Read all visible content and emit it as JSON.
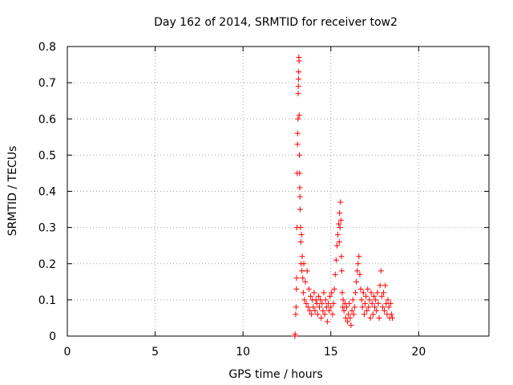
{
  "chart_data": {
    "type": "scatter",
    "title": "Day 162 of 2014, SRMTID for receiver tow2",
    "xlabel": "GPS time / hours",
    "ylabel": "SRMTID / TECUs",
    "xlim": [
      0,
      24
    ],
    "ylim": [
      0,
      0.8
    ],
    "xticks": [
      0,
      5,
      10,
      15,
      20
    ],
    "xtick_labels": [
      "0",
      "5",
      "10",
      "15",
      "20"
    ],
    "yticks": [
      0,
      0.1,
      0.2,
      0.3,
      0.4,
      0.5,
      0.6,
      0.7,
      0.8
    ],
    "ytick_labels": [
      "0",
      "0.1",
      "0.2",
      "0.3",
      "0.4",
      "0.5",
      "0.6",
      "0.7",
      "0.8"
    ],
    "grid": true,
    "marker": "plus",
    "marker_color": "#ff0000",
    "series": [
      {
        "name": "tow2",
        "points": [
          [
            12.95,
            0.0
          ],
          [
            12.97,
            0.005
          ],
          [
            13.0,
            0.06
          ],
          [
            13.02,
            0.08
          ],
          [
            13.04,
            0.13
          ],
          [
            13.05,
            0.16
          ],
          [
            13.07,
            0.3
          ],
          [
            13.08,
            0.45
          ],
          [
            13.1,
            0.53
          ],
          [
            13.11,
            0.56
          ],
          [
            13.13,
            0.6
          ],
          [
            13.14,
            0.67
          ],
          [
            13.15,
            0.69
          ],
          [
            13.16,
            0.71
          ],
          [
            13.17,
            0.73
          ],
          [
            13.18,
            0.77
          ],
          [
            13.19,
            0.76
          ],
          [
            13.2,
            0.61
          ],
          [
            13.21,
            0.5
          ],
          [
            13.22,
            0.45
          ],
          [
            13.23,
            0.41
          ],
          [
            13.24,
            0.385
          ],
          [
            13.25,
            0.35
          ],
          [
            13.27,
            0.3
          ],
          [
            13.29,
            0.26
          ],
          [
            13.31,
            0.2
          ],
          [
            13.33,
            0.28
          ],
          [
            13.35,
            0.18
          ],
          [
            13.37,
            0.22
          ],
          [
            13.4,
            0.16
          ],
          [
            13.43,
            0.12
          ],
          [
            13.46,
            0.2
          ],
          [
            13.5,
            0.1
          ],
          [
            13.55,
            0.15
          ],
          [
            13.6,
            0.09
          ],
          [
            13.65,
            0.18
          ],
          [
            13.7,
            0.08
          ],
          [
            13.75,
            0.13
          ],
          [
            13.8,
            0.07
          ],
          [
            13.85,
            0.11
          ],
          [
            13.9,
            0.06
          ],
          [
            13.95,
            0.1
          ],
          [
            14.0,
            0.08
          ],
          [
            14.05,
            0.12
          ],
          [
            14.1,
            0.07
          ],
          [
            14.15,
            0.1
          ],
          [
            14.2,
            0.09
          ],
          [
            14.25,
            0.06
          ],
          [
            14.3,
            0.11
          ],
          [
            14.35,
            0.08
          ],
          [
            14.4,
            0.1
          ],
          [
            14.45,
            0.05
          ],
          [
            14.5,
            0.09
          ],
          [
            14.55,
            0.07
          ],
          [
            14.6,
            0.12
          ],
          [
            14.65,
            0.06
          ],
          [
            14.7,
            0.1
          ],
          [
            14.75,
            0.08
          ],
          [
            14.8,
            0.04
          ],
          [
            14.85,
            0.09
          ],
          [
            14.9,
            0.07
          ],
          [
            14.95,
            0.11
          ],
          [
            15.0,
            0.08
          ],
          [
            15.05,
            0.12
          ],
          [
            15.1,
            0.06
          ],
          [
            15.15,
            0.09
          ],
          [
            15.2,
            0.13
          ],
          [
            15.25,
            0.17
          ],
          [
            15.3,
            0.21
          ],
          [
            15.35,
            0.25
          ],
          [
            15.4,
            0.28
          ],
          [
            15.45,
            0.31
          ],
          [
            15.48,
            0.26
          ],
          [
            15.5,
            0.34
          ],
          [
            15.52,
            0.3
          ],
          [
            15.55,
            0.37
          ],
          [
            15.57,
            0.32
          ],
          [
            15.6,
            0.22
          ],
          [
            15.62,
            0.18
          ],
          [
            15.65,
            0.12
          ],
          [
            15.68,
            0.08
          ],
          [
            15.7,
            0.1
          ],
          [
            15.75,
            0.07
          ],
          [
            15.8,
            0.09
          ],
          [
            15.85,
            0.05
          ],
          [
            15.9,
            0.08
          ],
          [
            15.95,
            0.04
          ],
          [
            16.0,
            0.06
          ],
          [
            16.05,
            0.09
          ],
          [
            16.1,
            0.05
          ],
          [
            16.15,
            0.03
          ],
          [
            16.2,
            0.07
          ],
          [
            16.25,
            0.1
          ],
          [
            16.3,
            0.06
          ],
          [
            16.35,
            0.08
          ],
          [
            16.4,
            0.12
          ],
          [
            16.45,
            0.15
          ],
          [
            16.5,
            0.18
          ],
          [
            16.55,
            0.2
          ],
          [
            16.6,
            0.22
          ],
          [
            16.65,
            0.17
          ],
          [
            16.7,
            0.13
          ],
          [
            16.75,
            0.1
          ],
          [
            16.8,
            0.08
          ],
          [
            16.85,
            0.12
          ],
          [
            16.9,
            0.06
          ],
          [
            16.95,
            0.09
          ],
          [
            17.0,
            0.11
          ],
          [
            17.05,
            0.07
          ],
          [
            17.1,
            0.13
          ],
          [
            17.15,
            0.08
          ],
          [
            17.2,
            0.1
          ],
          [
            17.25,
            0.05
          ],
          [
            17.3,
            0.12
          ],
          [
            17.35,
            0.09
          ],
          [
            17.4,
            0.06
          ],
          [
            17.45,
            0.11
          ],
          [
            17.5,
            0.08
          ],
          [
            17.55,
            0.1
          ],
          [
            17.6,
            0.07
          ],
          [
            17.65,
            0.12
          ],
          [
            17.7,
            0.09
          ],
          [
            17.75,
            0.05
          ],
          [
            17.8,
            0.14
          ],
          [
            17.85,
            0.18
          ],
          [
            17.9,
            0.11
          ],
          [
            17.95,
            0.08
          ],
          [
            18.0,
            0.12
          ],
          [
            18.05,
            0.07
          ],
          [
            18.1,
            0.14
          ],
          [
            18.15,
            0.09
          ],
          [
            18.2,
            0.06
          ],
          [
            18.25,
            0.1
          ],
          [
            18.3,
            0.08
          ],
          [
            18.35,
            0.05
          ],
          [
            18.4,
            0.09
          ],
          [
            18.45,
            0.06
          ],
          [
            18.5,
            0.05
          ]
        ]
      }
    ]
  }
}
